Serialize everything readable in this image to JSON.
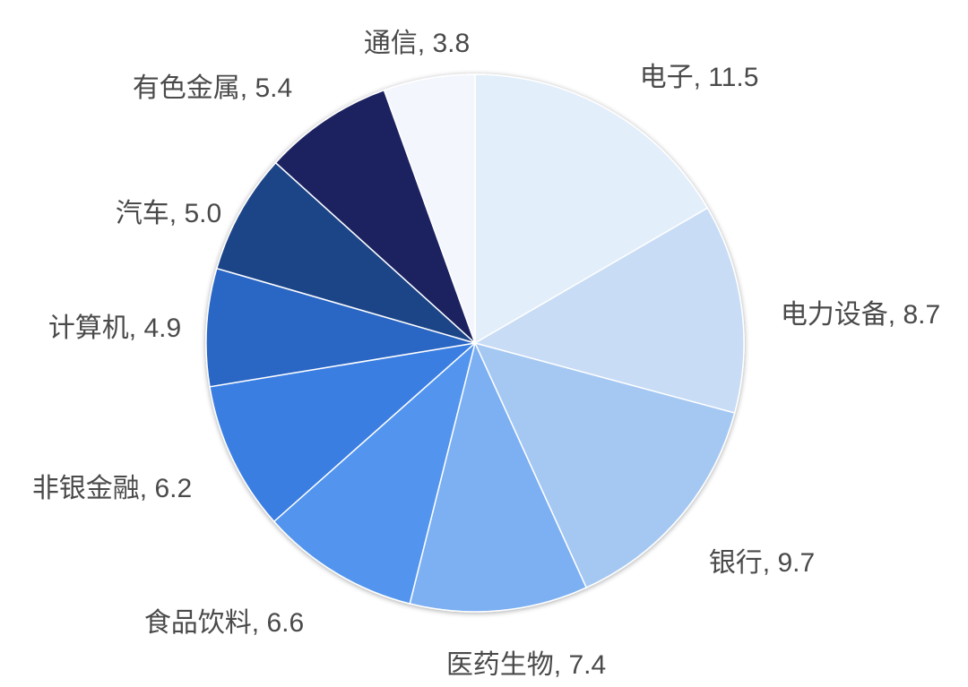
{
  "chart_data": {
    "type": "pie",
    "title": "",
    "slices": [
      {
        "label": "电子",
        "value": 11.5,
        "display": "电子, 11.5",
        "color": "#e3eefb"
      },
      {
        "label": "电力设备",
        "value": 8.7,
        "display": "电力设备, 8.7",
        "color": "#c8dcf6"
      },
      {
        "label": "银行",
        "value": 9.7,
        "display": "银行, 9.7",
        "color": "#a5c8f3"
      },
      {
        "label": "医药生物",
        "value": 7.4,
        "display": "医药生物, 7.4",
        "color": "#7cb0f2"
      },
      {
        "label": "食品饮料",
        "value": 6.6,
        "display": "食品饮料, 6.6",
        "color": "#5395ee"
      },
      {
        "label": "非银金融",
        "value": 6.2,
        "display": "非银金融, 6.2",
        "color": "#3a7ee2"
      },
      {
        "label": "计算机",
        "value": 4.9,
        "display": "计算机, 4.9",
        "color": "#2a66c4"
      },
      {
        "label": "汽车",
        "value": 5.0,
        "display": "汽车, 5.0",
        "color": "#1f4488"
      },
      {
        "label": "有色金属",
        "value": 5.4,
        "display": "有色金属, 5.4",
        "color": "#1a2460"
      },
      {
        "label": "通信",
        "value": 3.8,
        "display": "通信, 3.8",
        "color": "#f3f7fd"
      }
    ]
  }
}
